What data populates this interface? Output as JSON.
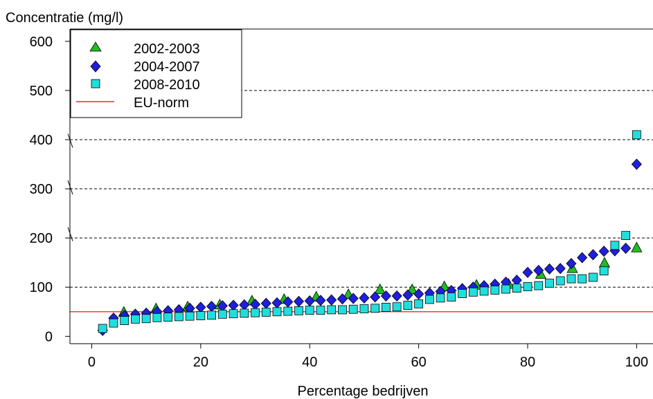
{
  "chart_data": {
    "type": "scatter",
    "title": "",
    "xlabel": "Percentage bedrijven",
    "ylabel": "Concentratie (mg/l)",
    "xlim": [
      -4,
      103
    ],
    "ylim": [
      -15,
      625
    ],
    "xticks": [
      0,
      20,
      40,
      60,
      80,
      100
    ],
    "yticks": [
      0,
      100,
      200,
      300,
      400,
      500,
      600
    ],
    "gridlines_y": [
      100,
      200,
      300,
      400,
      500
    ],
    "legend_position": "top-left",
    "reference_line": {
      "name": "EU-norm",
      "y": 50,
      "color": "#e00000"
    },
    "series": [
      {
        "name": "2002-2003",
        "marker": "triangle",
        "color": "#22bb22",
        "x": [
          5.9,
          11.8,
          17.6,
          23.5,
          29.4,
          35.3,
          41.2,
          47.1,
          52.9,
          58.8,
          64.7,
          70.6,
          76.5,
          82.4,
          88.2,
          94.1,
          100
        ],
        "y": [
          49,
          56,
          60,
          64,
          72,
          75,
          80,
          85,
          95,
          95,
          101,
          104,
          106,
          126,
          138,
          149,
          180
        ]
      },
      {
        "name": "2004-2007",
        "marker": "diamond",
        "color": "#1f1fdd",
        "x": [
          2,
          4,
          6,
          8,
          10,
          12,
          14,
          16,
          18,
          20,
          22,
          24,
          26,
          28,
          30,
          32,
          34,
          36,
          38,
          40,
          42,
          44,
          46,
          48,
          50,
          52,
          54,
          56,
          58,
          60,
          62,
          64,
          66,
          68,
          70,
          72,
          74,
          76,
          78,
          80,
          82,
          84,
          86,
          88,
          90,
          92,
          94,
          96,
          98,
          100
        ],
        "y": [
          12,
          37,
          42,
          45,
          47,
          50,
          52,
          54,
          57,
          59,
          61,
          62,
          63,
          64,
          65,
          67,
          68,
          70,
          71,
          72,
          73,
          74,
          76,
          77,
          78,
          80,
          82,
          82,
          84,
          86,
          88,
          91,
          93,
          97,
          100,
          103,
          106,
          110,
          114,
          130,
          134,
          137,
          138,
          148,
          160,
          166,
          173,
          174,
          179,
          350
        ]
      },
      {
        "name": "2008-2010",
        "marker": "square",
        "color": "#22dddd",
        "x": [
          2,
          4,
          6,
          8,
          10,
          12,
          14,
          16,
          18,
          20,
          22,
          24,
          26,
          28,
          30,
          32,
          34,
          36,
          38,
          40,
          42,
          44,
          46,
          48,
          50,
          52,
          54,
          56,
          58,
          60,
          62,
          64,
          66,
          68,
          70,
          72,
          74,
          76,
          78,
          80,
          82,
          84,
          86,
          88,
          90,
          92,
          94,
          96,
          98,
          100
        ],
        "y": [
          16,
          27,
          32,
          35,
          36,
          38,
          39,
          40,
          41,
          42,
          43,
          45,
          46,
          47,
          48,
          49,
          50,
          51,
          52,
          53,
          53,
          54,
          54,
          55,
          56,
          57,
          59,
          60,
          63,
          66,
          75,
          78,
          80,
          87,
          90,
          92,
          94,
          96,
          98,
          101,
          103,
          108,
          113,
          117,
          117,
          120,
          133,
          185,
          205,
          410
        ]
      }
    ]
  }
}
